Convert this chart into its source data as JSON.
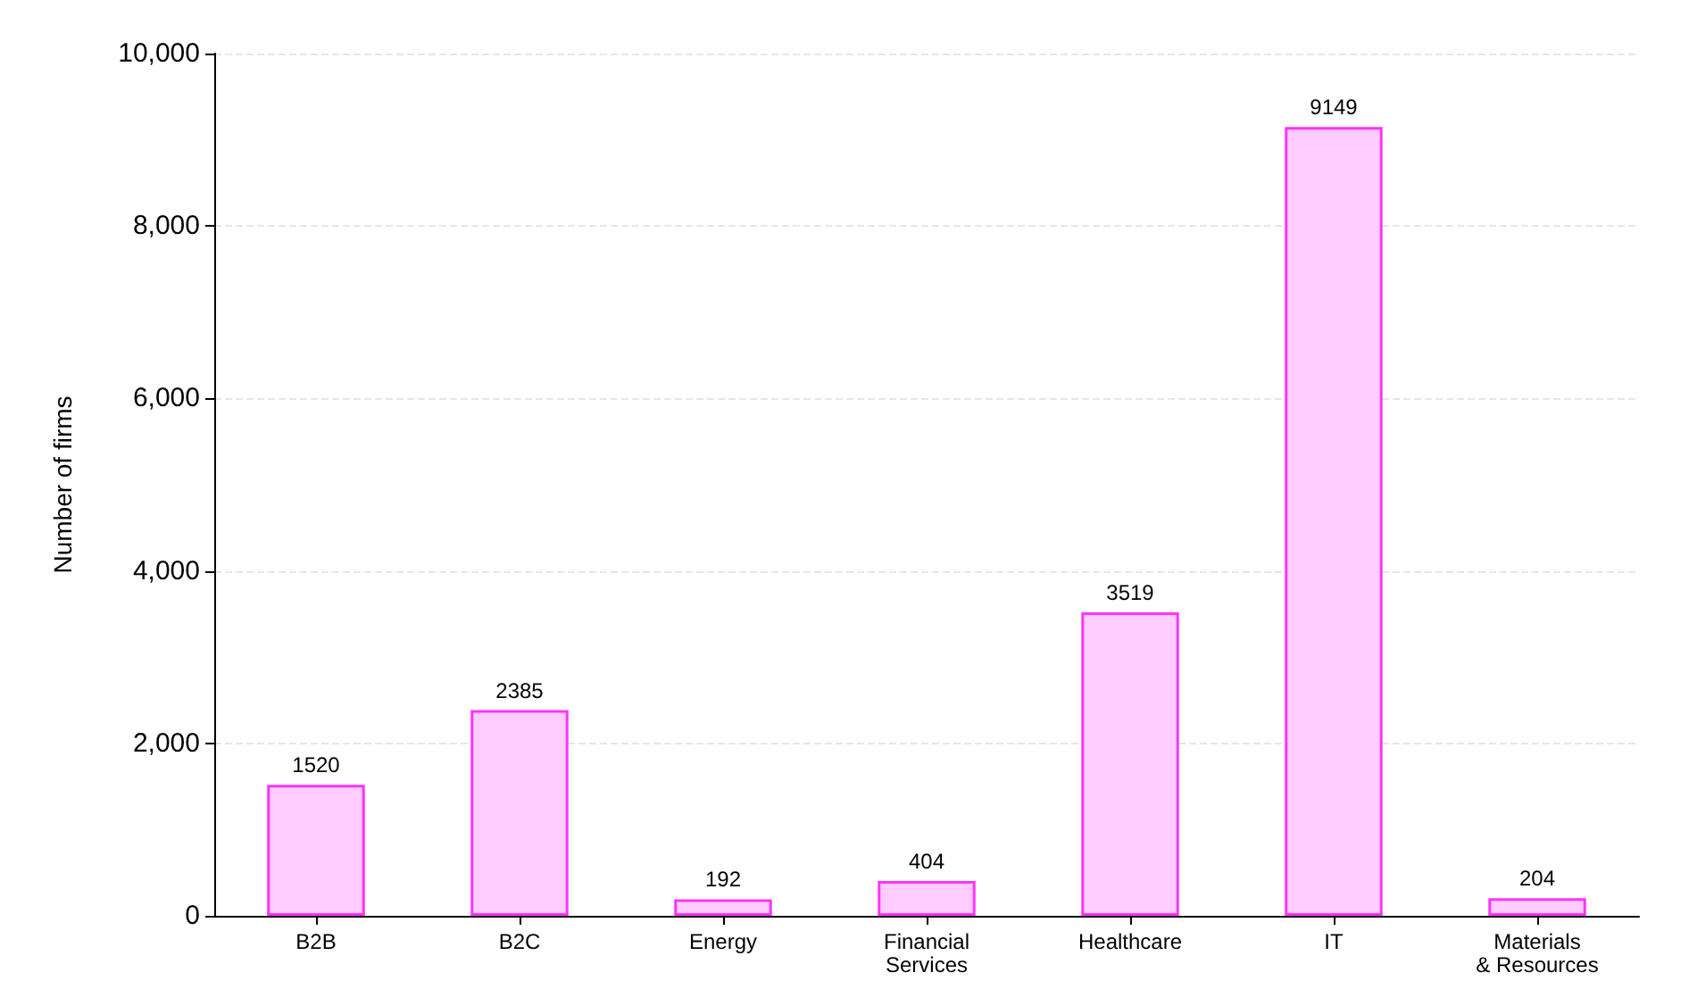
{
  "chart_data": {
    "type": "bar",
    "ylabel": "Number of firms",
    "categories": [
      "B2B",
      "B2C",
      "Energy",
      "Financial\nServices",
      "Healthcare",
      "IT",
      "Materials\n& Resources"
    ],
    "series": [
      {
        "values": [
          1520,
          2385,
          192,
          404,
          3519,
          9149,
          204
        ],
        "color": "#ffccff"
      }
    ],
    "ylim": [
      0,
      10000
    ],
    "yticks": [
      0,
      {
        "value": 2000,
        "label": "2,000"
      },
      {
        "value": 4000,
        "label": "4,000"
      },
      {
        "value": 6000,
        "label": "6,000"
      },
      {
        "value": 8000,
        "label": "8,000"
      },
      {
        "value": 10000,
        "label": "10,000"
      }
    ],
    "grid": "y",
    "data_labels": true
  }
}
